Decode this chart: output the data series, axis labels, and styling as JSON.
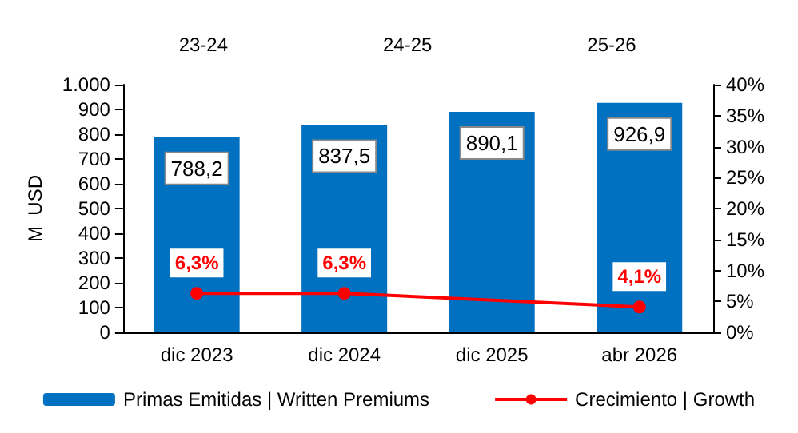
{
  "chart_data": {
    "type": "bar",
    "ylabel": "M  USD",
    "categories": [
      "dic 2023",
      "dic 2024",
      "dic 2025",
      "abr 2026"
    ],
    "series": [
      {
        "name": "Primas Emitidas | Written Premiums",
        "color": "#0070c0",
        "values": [
          788.2,
          837.5,
          890.1,
          926.9
        ],
        "value_labels": [
          "788,2",
          "837,5",
          "890,1",
          "926,9"
        ]
      },
      {
        "name": "Crecimiento | Growth",
        "type": "line",
        "axis": "y2",
        "color": "#ff0000",
        "values": [
          6.3,
          6.3,
          null,
          4.1
        ],
        "value_labels": [
          "6,3%",
          "6,3%",
          null,
          "4,1%"
        ]
      }
    ],
    "ylim": [
      0,
      1000
    ],
    "yticks": [
      0,
      100,
      200,
      300,
      400,
      500,
      600,
      700,
      800,
      900,
      {
        "value": 1000,
        "label": "1.000"
      }
    ],
    "y2lim": [
      0,
      40
    ],
    "y2ticks": [
      {
        "value": 0,
        "label": "0%"
      },
      {
        "value": 5,
        "label": "5%"
      },
      {
        "value": 10,
        "label": "10%"
      },
      {
        "value": 15,
        "label": "15%"
      },
      {
        "value": 20,
        "label": "20%"
      },
      {
        "value": 25,
        "label": "25%"
      },
      {
        "value": 30,
        "label": "30%"
      },
      {
        "value": 35,
        "label": "35%"
      },
      {
        "value": 40,
        "label": "40%"
      }
    ],
    "annotations": [
      "23-24",
      "24-25",
      "25-26"
    ],
    "legend": "bottom",
    "marker": "circle",
    "grid": false
  }
}
